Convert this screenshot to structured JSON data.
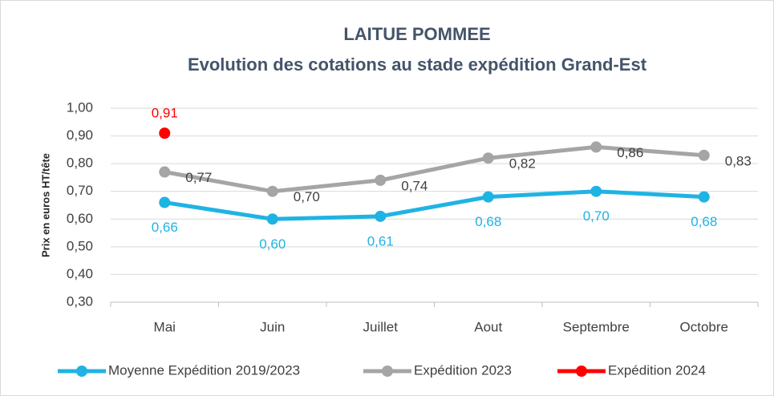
{
  "chart_data": {
    "type": "line",
    "title": "LAITUE POMMEE",
    "subtitle": "Evolution des cotations au stade expédition Grand-Est",
    "y_label": "Prix en euros HT/tête",
    "categories": [
      "Mai",
      "Juin",
      "Juillet",
      "Aout",
      "Septembre",
      "Octobre"
    ],
    "series": [
      {
        "name": "Moyenne Expédition 2019/2023",
        "color": "#1fb3e3",
        "values": [
          0.66,
          0.6,
          0.61,
          0.68,
          0.7,
          0.68
        ],
        "value_labels": [
          "0,66",
          "0,60",
          "0,61",
          "0,68",
          "0,70",
          "0,68"
        ]
      },
      {
        "name": "Expédition 2023",
        "color": "#a5a5a5",
        "values": [
          0.77,
          0.7,
          0.74,
          0.82,
          0.86,
          0.83
        ],
        "value_labels": [
          "0,77",
          "0,70",
          "0,74",
          "0,82",
          "0,86",
          "0,83"
        ]
      },
      {
        "name": "Expédition 2024",
        "color": "#ff0000",
        "values": [
          0.91,
          null,
          null,
          null,
          null,
          null
        ],
        "value_labels": [
          "0,91",
          null,
          null,
          null,
          null,
          null
        ]
      }
    ],
    "ylim": [
      0.3,
      1.0
    ],
    "yticks": [
      {
        "value": 0.3,
        "label": "0,30"
      },
      {
        "value": 0.4,
        "label": "0,40"
      },
      {
        "value": 0.5,
        "label": "0,50"
      },
      {
        "value": 0.6,
        "label": "0,60"
      },
      {
        "value": 0.7,
        "label": "0,70"
      },
      {
        "value": 0.8,
        "label": "0,80"
      },
      {
        "value": 0.9,
        "label": "0,90"
      },
      {
        "value": 1.0,
        "label": "1,00"
      }
    ],
    "grid": true
  }
}
